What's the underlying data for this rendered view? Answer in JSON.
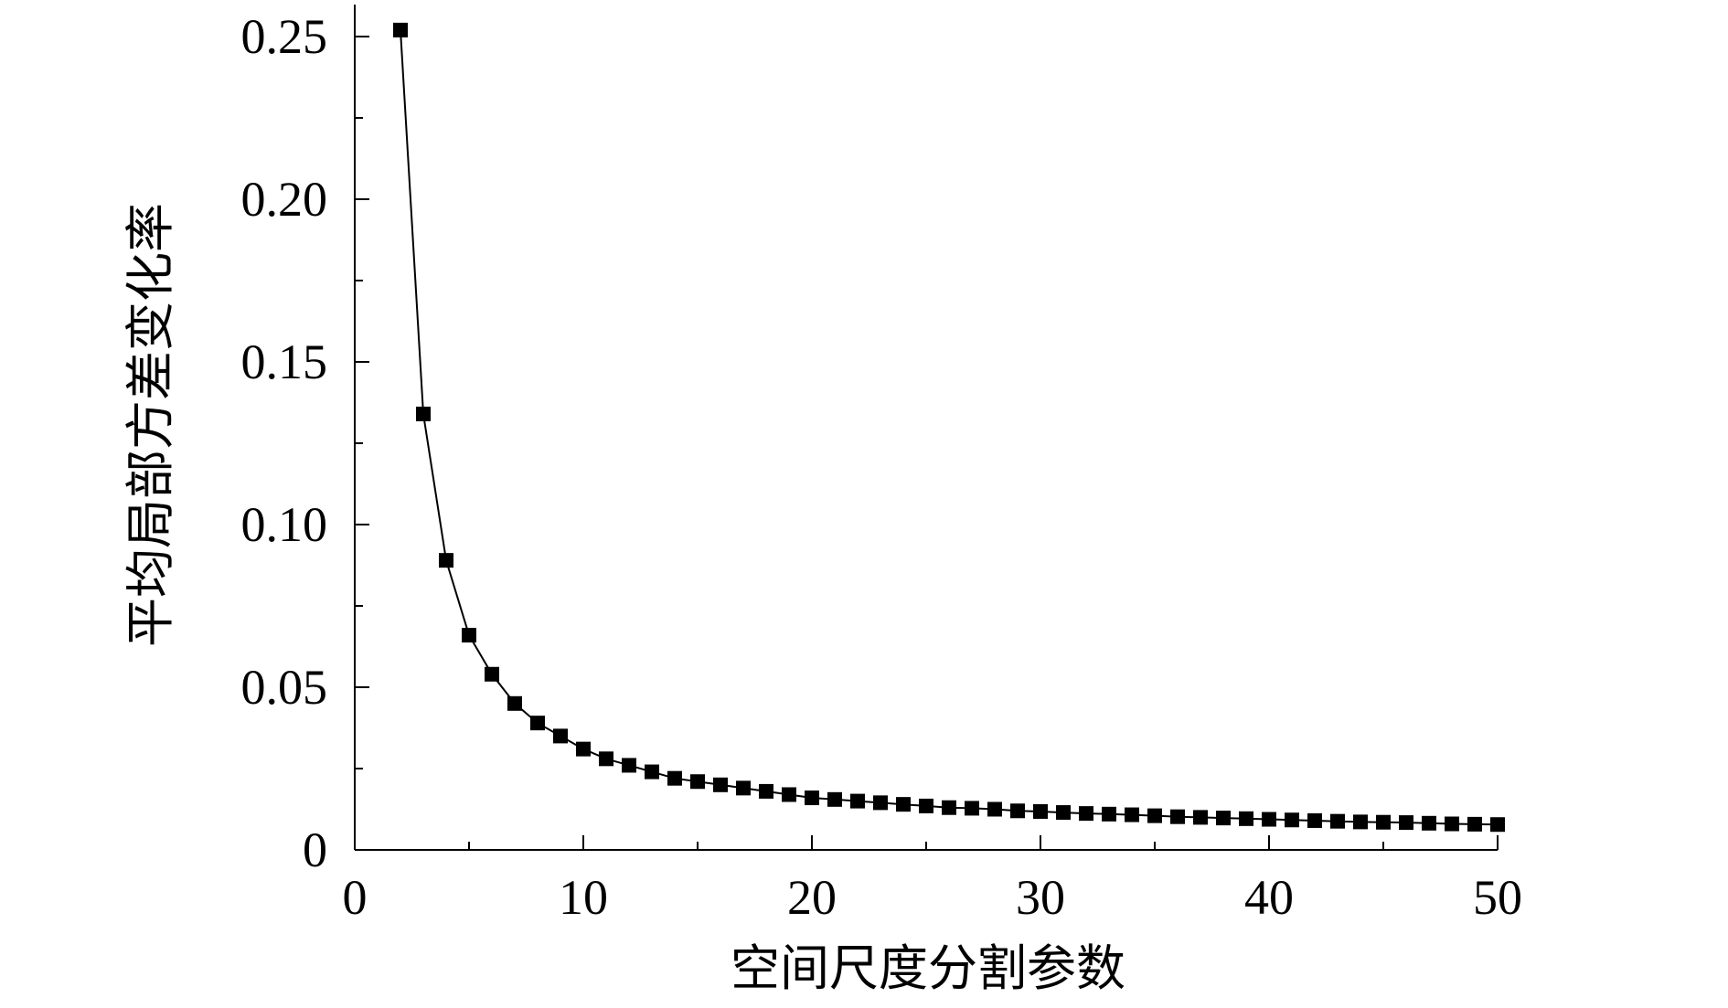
{
  "chart_data": {
    "type": "scatter",
    "title": "",
    "xlabel": "空间尺度分割参数",
    "ylabel": "平均局部方差变化率",
    "xlim": [
      0,
      50
    ],
    "ylim": [
      0,
      0.25
    ],
    "x_ticks": [
      "0",
      "10",
      "20",
      "30",
      "40",
      "50"
    ],
    "y_ticks": [
      "0",
      "0.05",
      "0.10",
      "0.15",
      "0.20",
      "0.25"
    ],
    "grid": false,
    "connected_line": true,
    "marker": "square",
    "series": [
      {
        "x": [
          2,
          3,
          4,
          5,
          6,
          7,
          8,
          9,
          10,
          11,
          12,
          13,
          14,
          15,
          16,
          17,
          18,
          19,
          20,
          21,
          22,
          23,
          24,
          25,
          26,
          27,
          28,
          29,
          30,
          31,
          32,
          33,
          34,
          35,
          36,
          37,
          38,
          39,
          40,
          41,
          42,
          43,
          44,
          45,
          46,
          47,
          48,
          49,
          50
        ],
        "values": [
          0.252,
          0.134,
          0.089,
          0.066,
          0.054,
          0.045,
          0.039,
          0.035,
          0.031,
          0.028,
          0.026,
          0.024,
          0.022,
          0.021,
          0.02,
          0.019,
          0.018,
          0.017,
          0.016,
          0.0155,
          0.015,
          0.0145,
          0.014,
          0.0135,
          0.013,
          0.0128,
          0.0125,
          0.012,
          0.0118,
          0.0115,
          0.0112,
          0.011,
          0.0108,
          0.0105,
          0.0102,
          0.01,
          0.0098,
          0.0096,
          0.0094,
          0.0092,
          0.009,
          0.0088,
          0.0086,
          0.0085,
          0.0084,
          0.0082,
          0.008,
          0.0079,
          0.0078
        ]
      }
    ]
  }
}
